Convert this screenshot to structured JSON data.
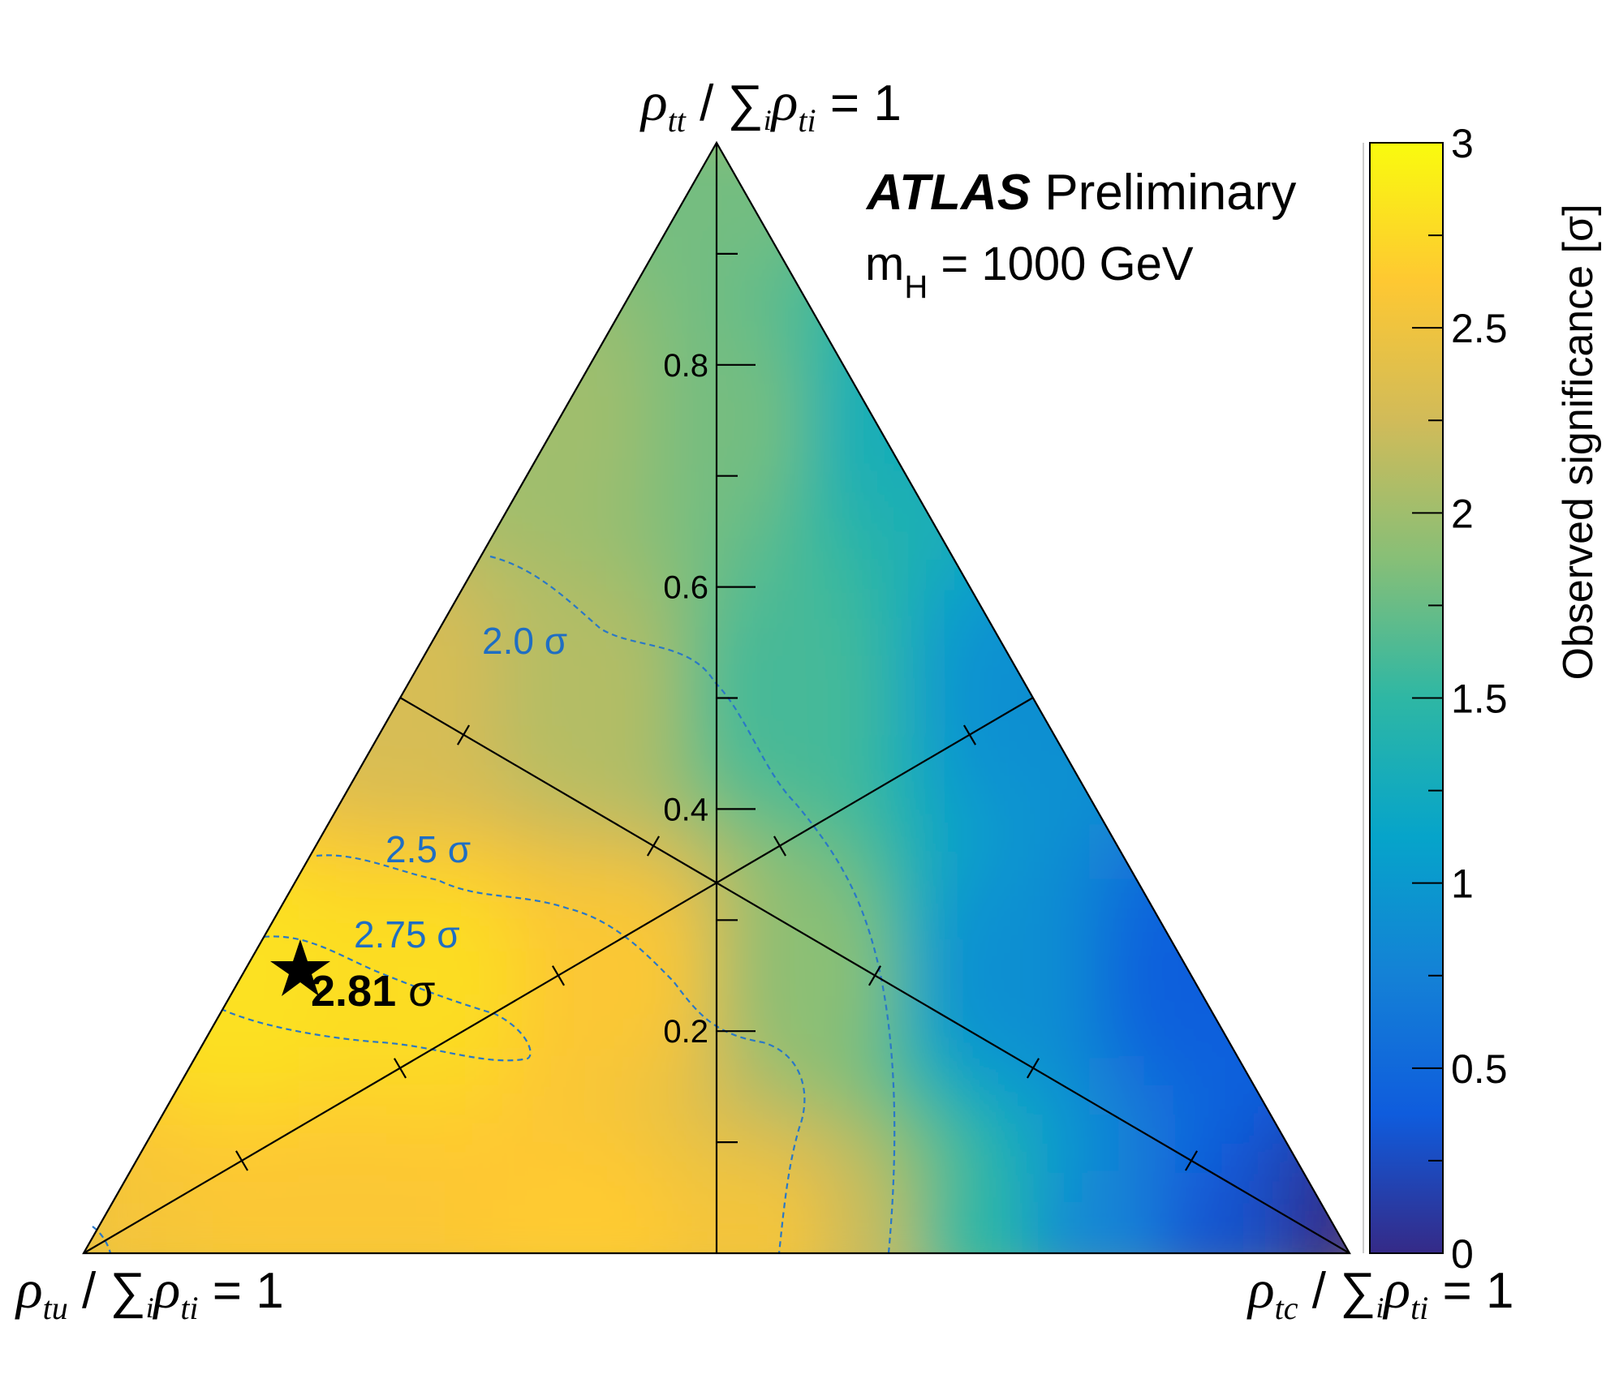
{
  "chart_data": {
    "type": "heatmap",
    "subtype": "ternary",
    "experiment_label": {
      "bold": "ATLAS",
      "regular": "Preliminary"
    },
    "mass_label": {
      "prefix": "m",
      "subscript": "H",
      "suffix": " = 1000 GeV"
    },
    "corner_labels": {
      "top": {
        "rho": "ρ",
        "sub": "tt",
        "mid": " / ∑",
        "i": "i",
        "rho2": "ρ",
        "sub2": "ti",
        "end": " = 1"
      },
      "left": {
        "rho": "ρ",
        "sub": "tu",
        "mid": " / ∑",
        "i": "i",
        "rho2": "ρ",
        "sub2": "ti",
        "end": " = 1"
      },
      "right": {
        "rho": "ρ",
        "sub": "tc",
        "mid": " / ∑",
        "i": "i",
        "rho2": "ρ",
        "sub2": "ti",
        "end": " = 1"
      }
    },
    "vertical_axis": {
      "range": [
        0,
        1
      ],
      "major_ticks": [
        0.2,
        0.4,
        0.6,
        0.8
      ],
      "major_labels": [
        "0.2",
        "0.4",
        "0.6",
        "0.8"
      ],
      "minor_ticks": [
        0.1,
        0.3,
        0.5,
        0.7,
        0.9
      ]
    },
    "colorbar": {
      "label": "Observed significance [σ]",
      "range": [
        0,
        3
      ],
      "ticks": [
        0,
        0.5,
        1,
        1.5,
        2,
        2.5,
        3
      ],
      "tick_labels": [
        "0",
        "0.5",
        "1",
        "1.5",
        "2",
        "2.5",
        "3"
      ],
      "colormap": [
        "#352a87",
        "#0f5cdd",
        "#1481d6",
        "#06a4ca",
        "#2eb7a4",
        "#87bf77",
        "#d1bb59",
        "#fec832",
        "#f9fb0e"
      ]
    },
    "significance_grid": {
      "description_axes": [
        "rho_tu fraction",
        "rho_tc fraction",
        "rho_tt fraction"
      ],
      "points": [
        {
          "tu": 1.0,
          "tc": 0.0,
          "tt": 0.0,
          "sigma": 2.55
        },
        {
          "tu": 0.8,
          "tc": 0.2,
          "tt": 0.0,
          "sigma": 2.6
        },
        {
          "tu": 0.6,
          "tc": 0.4,
          "tt": 0.0,
          "sigma": 2.65
        },
        {
          "tu": 0.45,
          "tc": 0.55,
          "tt": 0.0,
          "sigma": 2.55
        },
        {
          "tu": 0.38,
          "tc": 0.62,
          "tt": 0.0,
          "sigma": 2.2
        },
        {
          "tu": 0.3,
          "tc": 0.7,
          "tt": 0.0,
          "sigma": 1.5
        },
        {
          "tu": 0.2,
          "tc": 0.8,
          "tt": 0.0,
          "sigma": 0.8
        },
        {
          "tu": 0.1,
          "tc": 0.9,
          "tt": 0.0,
          "sigma": 0.3
        },
        {
          "tu": 0.0,
          "tc": 1.0,
          "tt": 0.0,
          "sigma": 0.0
        },
        {
          "tu": 0.75,
          "tc": 0.0,
          "tt": 0.25,
          "sigma": 2.81
        },
        {
          "tu": 0.6,
          "tc": 0.15,
          "tt": 0.25,
          "sigma": 2.78
        },
        {
          "tu": 0.45,
          "tc": 0.3,
          "tt": 0.25,
          "sigma": 2.6
        },
        {
          "tu": 0.3,
          "tc": 0.45,
          "tt": 0.25,
          "sigma": 1.9
        },
        {
          "tu": 0.15,
          "tc": 0.6,
          "tt": 0.25,
          "sigma": 0.9
        },
        {
          "tu": 0.0,
          "tc": 0.75,
          "tt": 0.25,
          "sigma": 0.4
        },
        {
          "tu": 0.5,
          "tc": 0.0,
          "tt": 0.5,
          "sigma": 2.3
        },
        {
          "tu": 0.35,
          "tc": 0.15,
          "tt": 0.5,
          "sigma": 2.1
        },
        {
          "tu": 0.2,
          "tc": 0.3,
          "tt": 0.5,
          "sigma": 1.6
        },
        {
          "tu": 0.0,
          "tc": 0.5,
          "tt": 0.5,
          "sigma": 0.9
        },
        {
          "tu": 0.25,
          "tc": 0.0,
          "tt": 0.75,
          "sigma": 2.0
        },
        {
          "tu": 0.1,
          "tc": 0.15,
          "tt": 0.75,
          "sigma": 1.8
        },
        {
          "tu": 0.0,
          "tc": 0.25,
          "tt": 0.75,
          "sigma": 1.3
        },
        {
          "tu": 0.0,
          "tc": 0.0,
          "tt": 1.0,
          "sigma": 1.8
        }
      ]
    },
    "contours": [
      {
        "label": "2.0 σ",
        "level": 2.0
      },
      {
        "label": "2.5 σ",
        "level": 2.5
      },
      {
        "label": "2.75 σ",
        "level": 2.75
      }
    ],
    "best_fit": {
      "label_value": "2.81",
      "label_unit": " σ",
      "tu": 0.75,
      "tc": 0.0,
      "tt": 0.25,
      "sigma": 2.81
    }
  }
}
